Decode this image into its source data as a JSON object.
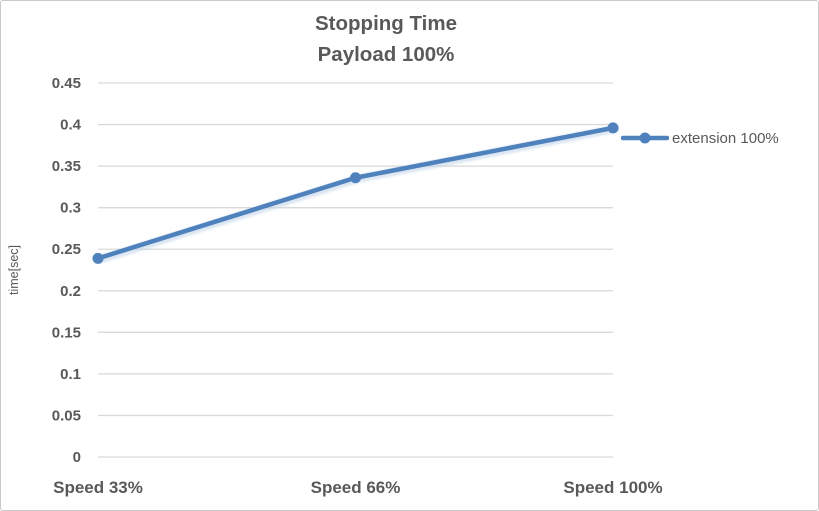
{
  "chart_data": {
    "type": "line",
    "title": "Stopping Time",
    "subtitle": "Payload 100%",
    "categories": [
      "Speed 33%",
      "Speed 66%",
      "Speed 100%"
    ],
    "series": [
      {
        "name": "extension 100%",
        "values": [
          0.239,
          0.336,
          0.396
        ],
        "color": "#4F81BD"
      }
    ],
    "xlabel": "",
    "ylabel": "time[sec]",
    "ylim": [
      0,
      0.45
    ],
    "ytick_step": 0.05,
    "ytick_labels": [
      "0",
      "0.05",
      "0.1",
      "0.15",
      "0.2",
      "0.25",
      "0.3",
      "0.35",
      "0.4",
      "0.45"
    ],
    "grid": true,
    "legend_position": "right",
    "marker": "circle",
    "colors": {
      "text": "#595959",
      "gridline": "#D9D9D9",
      "series_glow": "#BDD2E8",
      "border": "#C9C9C9",
      "background": "#FFFFFF"
    }
  }
}
